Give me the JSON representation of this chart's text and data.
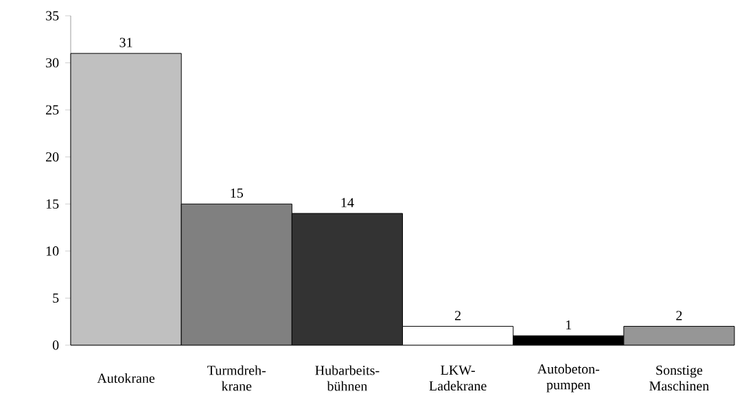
{
  "chart_data": {
    "type": "bar",
    "categories": [
      "Autokrane",
      "Turmdreh- krane",
      "Hubarbeits- bühnen",
      "LKW- Ladekrane",
      "Autobeton- pumpen",
      "Sonstige Maschinen"
    ],
    "values": [
      31,
      15,
      14,
      2,
      1,
      2
    ],
    "colors": [
      "#c0c0c0",
      "#808080",
      "#333333",
      "#ffffff",
      "#000000",
      "#969696"
    ],
    "ylim": [
      0,
      35
    ],
    "yticks": [
      0,
      5,
      10,
      15,
      20,
      25,
      30,
      35
    ],
    "data_labels": true
  }
}
